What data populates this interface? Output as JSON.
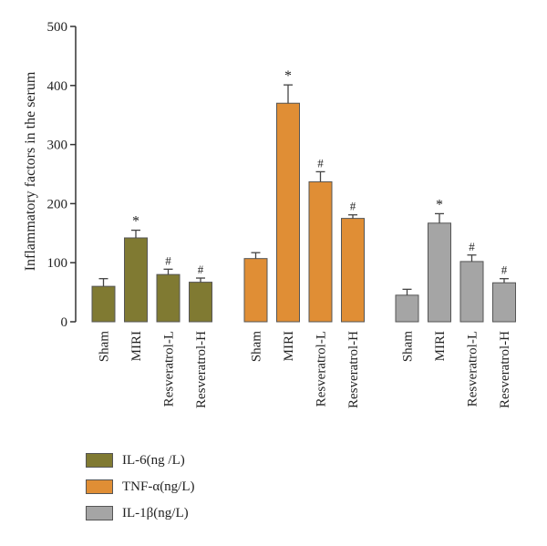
{
  "chart_data": {
    "type": "bar",
    "ylabel": "Inflammatory factors in the serum",
    "ylim": [
      0,
      500
    ],
    "yticks": [
      0,
      100,
      200,
      300,
      400,
      500
    ],
    "categories": [
      "Sham",
      "MIRI",
      "Resveratrol-L",
      "Resveratrol-H"
    ],
    "series": [
      {
        "name": "IL-6(ng /L)",
        "color": "#807a32",
        "values": [
          60,
          142,
          80,
          67
        ],
        "errors": [
          13,
          13,
          9,
          7
        ],
        "markers": [
          "",
          "*",
          "#",
          "#"
        ]
      },
      {
        "name": "TNF-α(ng/L)",
        "color": "#e08e35",
        "values": [
          107,
          370,
          237,
          175
        ],
        "errors": [
          10,
          31,
          17,
          6
        ],
        "markers": [
          "",
          "*",
          "#",
          "#"
        ]
      },
      {
        "name": "IL-1β(ng/L)",
        "color": "#a5a5a5",
        "values": [
          45,
          167,
          102,
          66
        ],
        "errors": [
          10,
          16,
          11,
          7
        ],
        "markers": [
          "",
          "*",
          "#",
          "#"
        ]
      }
    ],
    "legend_position": "bottom-left",
    "grid": false
  }
}
